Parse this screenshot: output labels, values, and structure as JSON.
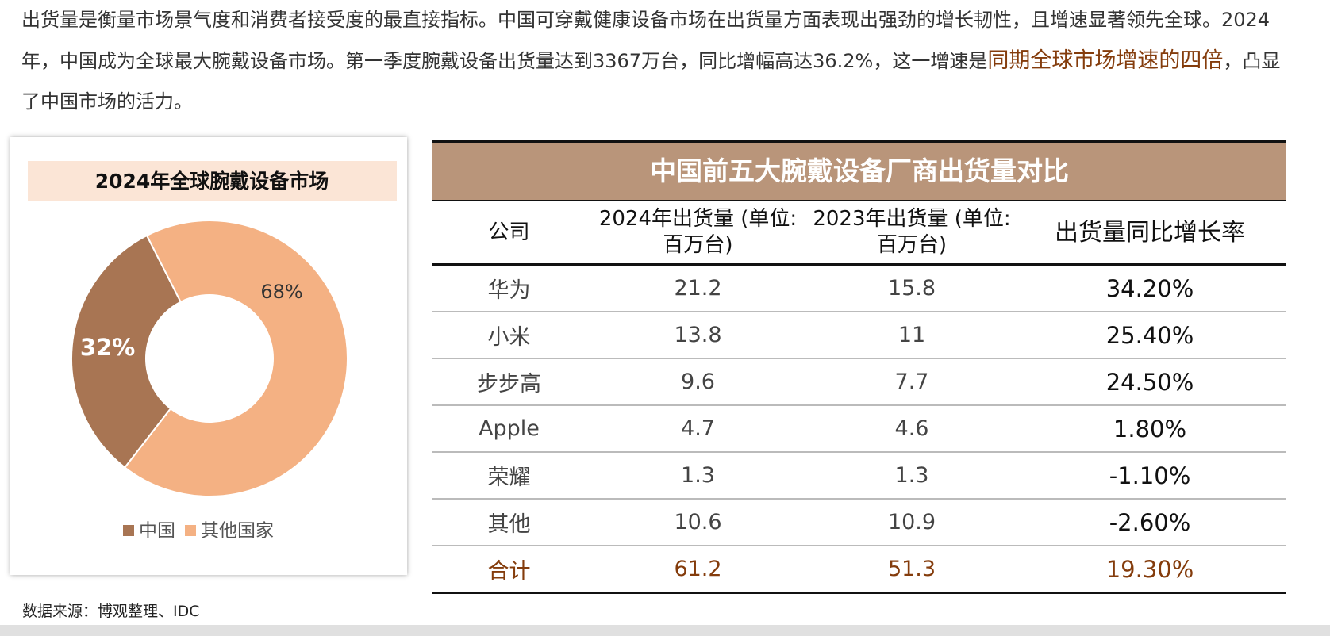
{
  "paragraph": {
    "parts": [
      "出货量是衡量市场景气度和消费者接受度的最直接指标。中国可穿戴健康设备市场在出货量方面表现出强劲的增长韧性，且增速显著领先全球。2024年，中国成为全球最大腕戴设备市场。第一季度腕戴设备出货量达到3367万台，同比增幅高达36.2%，这一增速是",
      "同期全球市场增速的四倍",
      "，凸显了中国市场的活力。"
    ]
  },
  "chart_data": {
    "type": "pie",
    "donut": true,
    "title": "2024年全球腕戴设备市场",
    "categories": [
      "中国",
      "其他国家"
    ],
    "values": [
      32,
      68
    ],
    "value_labels": [
      "32%",
      "68%"
    ],
    "colors": [
      "#a87553",
      "#f4b183"
    ]
  },
  "table": {
    "title": "中国前五大腕戴设备厂商出货量对比",
    "headers": [
      "公司",
      "2024年出货量 (单位: 百万台)",
      "2023年出货量 (单位: 百万台)",
      "出货量同比增长率"
    ],
    "rows": [
      [
        "华为",
        "21.2",
        "15.8",
        "34.20%"
      ],
      [
        "小米",
        "13.8",
        "11",
        "25.40%"
      ],
      [
        "步步高",
        "9.6",
        "7.7",
        "24.50%"
      ],
      [
        "Apple",
        "4.7",
        "4.6",
        "1.80%"
      ],
      [
        "荣耀",
        "1.3",
        "1.3",
        "-1.10%"
      ],
      [
        "其他",
        "10.6",
        "10.9",
        "-2.60%"
      ],
      [
        "合计",
        "61.2",
        "51.3",
        "19.30%"
      ]
    ]
  },
  "source": "数据来源：博观整理、IDC"
}
